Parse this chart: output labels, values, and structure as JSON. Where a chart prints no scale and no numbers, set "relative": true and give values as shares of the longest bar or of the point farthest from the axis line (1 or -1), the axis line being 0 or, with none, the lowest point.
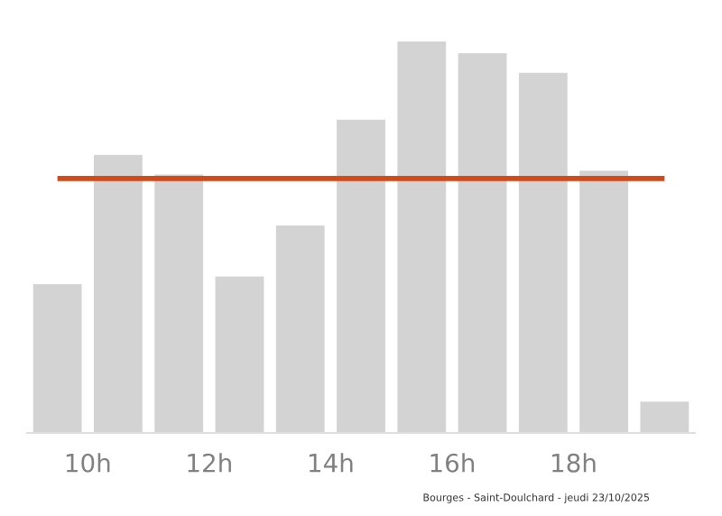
{
  "chart_data": {
    "type": "bar",
    "relative": true,
    "x": [
      9.5,
      10.5,
      11.5,
      12.5,
      13.5,
      14.5,
      15.5,
      16.5,
      17.5,
      18.5,
      19.5
    ],
    "values": [
      0.38,
      0.71,
      0.66,
      0.4,
      0.53,
      0.8,
      1,
      0.97,
      0.92,
      0.67,
      0.08
    ],
    "color": "#d3d3d3",
    "xlim": [
      9,
      20
    ],
    "xticks": [
      {
        "value": 10,
        "label": "10h"
      },
      {
        "value": 12,
        "label": "12h"
      },
      {
        "value": 14,
        "label": "14h"
      },
      {
        "value": 16,
        "label": "16h"
      },
      {
        "value": 18,
        "label": "18h"
      }
    ],
    "ref_lines": [
      {
        "axis": "y",
        "value": 0.65,
        "color": "#d2491a"
      }
    ],
    "annotations": [
      "Bourges - Saint-Doulchard - jeudi 23/10/2025"
    ],
    "grid": false,
    "legend": false
  }
}
